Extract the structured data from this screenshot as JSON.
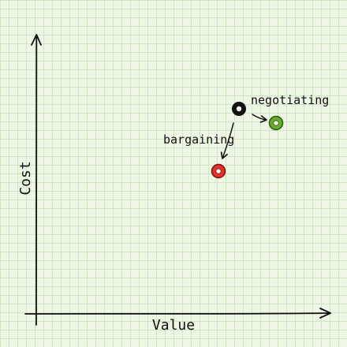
{
  "axes": {
    "x_label": "Value",
    "y_label": "Cost"
  },
  "points": [
    {
      "id": "origin",
      "color": "#111111"
    },
    {
      "id": "negotiating",
      "color": "#6aaa2a"
    },
    {
      "id": "bargaining",
      "color": "#e53030"
    }
  ],
  "annotations": {
    "negotiating": "negotiating",
    "bargaining": "bargaining"
  }
}
